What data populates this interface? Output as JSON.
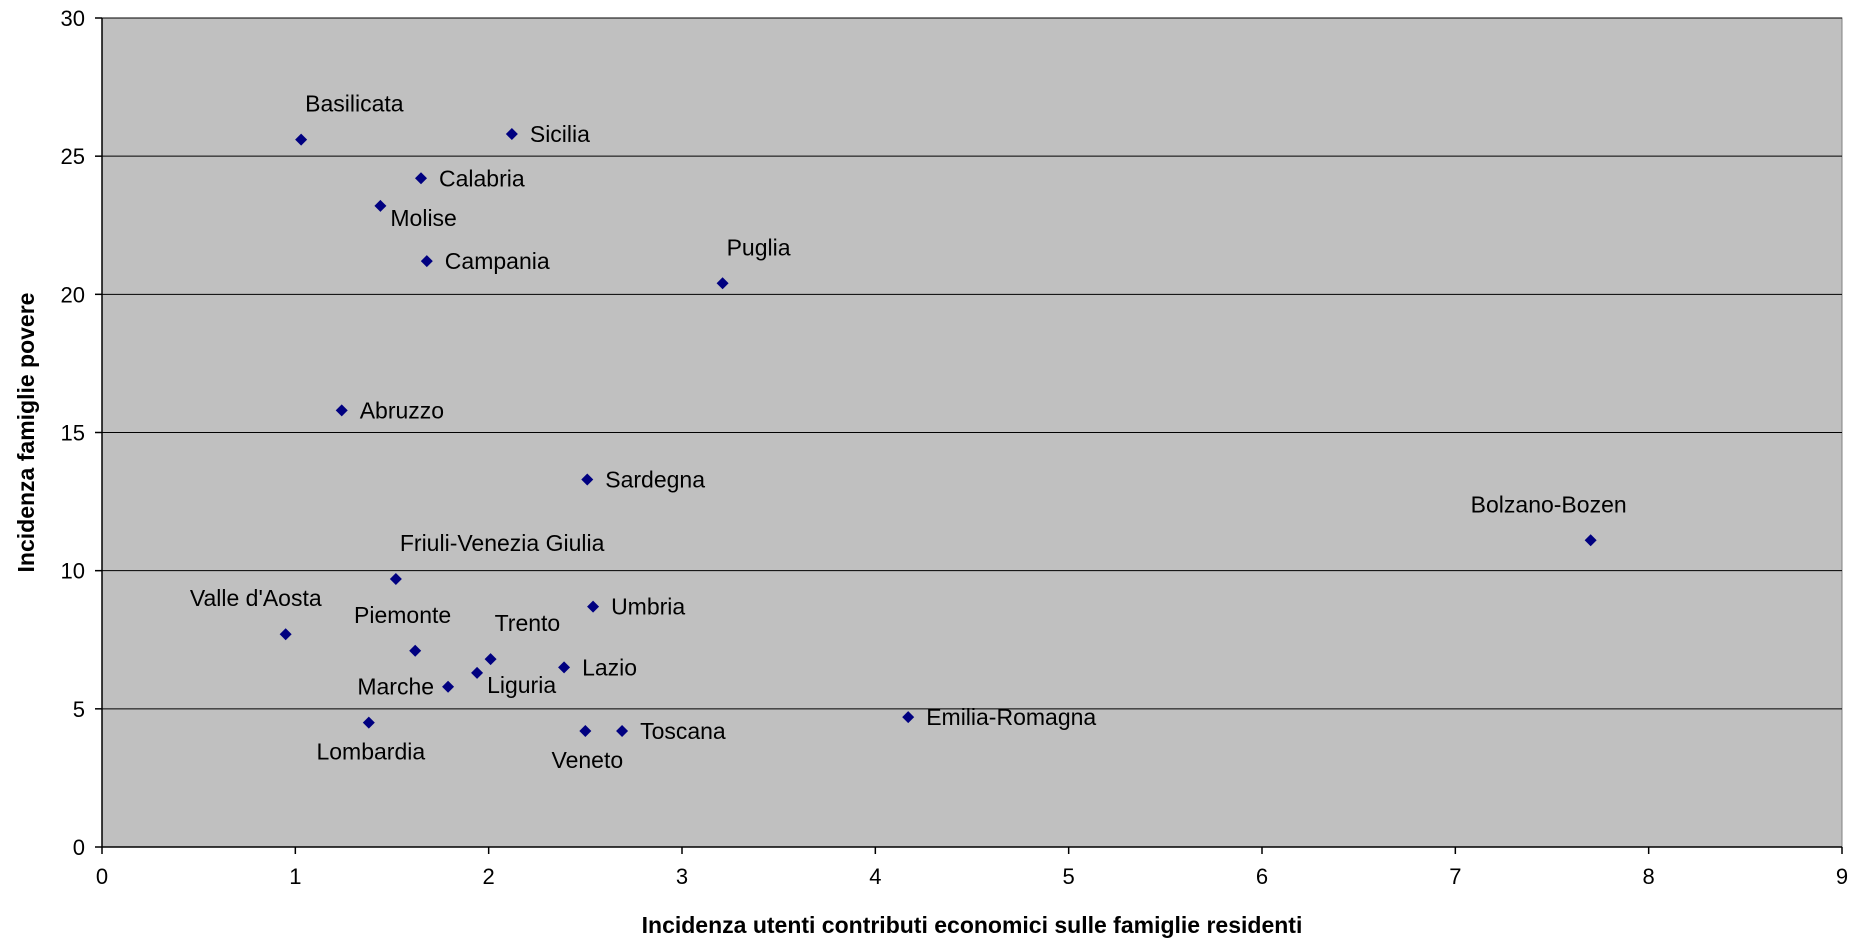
{
  "colors": {
    "plot_bg": "#c0c0c0",
    "marker": "#000080",
    "grid": "#000000"
  },
  "chart_data": {
    "type": "scatter",
    "title": "",
    "xlabel": "Incidenza utenti contributi economici sulle famiglie residenti",
    "ylabel": "Incidenza famiglie povere",
    "xlim": [
      0,
      9
    ],
    "ylim": [
      0,
      30
    ],
    "xticks": [
      0,
      1,
      2,
      3,
      4,
      5,
      6,
      7,
      8,
      9
    ],
    "yticks": [
      0,
      5,
      10,
      15,
      20,
      25,
      30
    ],
    "grid": "horizontal",
    "marker": "diamond",
    "points": [
      {
        "label": "Basilicata",
        "x": 1.03,
        "y": 25.6,
        "pos": "above-right"
      },
      {
        "label": "Sicilia",
        "x": 2.12,
        "y": 25.8,
        "pos": "right"
      },
      {
        "label": "Calabria",
        "x": 1.65,
        "y": 24.2,
        "pos": "right"
      },
      {
        "label": "Molise",
        "x": 1.44,
        "y": 23.2,
        "pos": "below-right"
      },
      {
        "label": "Campania",
        "x": 1.68,
        "y": 21.2,
        "pos": "right"
      },
      {
        "label": "Puglia",
        "x": 3.21,
        "y": 20.4,
        "pos": "above-right"
      },
      {
        "label": "Abruzzo",
        "x": 1.24,
        "y": 15.8,
        "pos": "right"
      },
      {
        "label": "Sardegna",
        "x": 2.51,
        "y": 13.3,
        "pos": "right"
      },
      {
        "label": "Bolzano-Bozen",
        "x": 7.7,
        "y": 11.1,
        "pos": "above-left"
      },
      {
        "label": "Friuli-Venezia Giulia",
        "x": 1.52,
        "y": 9.7,
        "pos": "above-right"
      },
      {
        "label": "Umbria",
        "x": 2.54,
        "y": 8.7,
        "pos": "right"
      },
      {
        "label": "Valle d'Aosta",
        "x": 0.95,
        "y": 7.7,
        "pos": "above-left"
      },
      {
        "label": "Piemonte",
        "x": 1.62,
        "y": 7.1,
        "pos": "above-left"
      },
      {
        "label": "Trento",
        "x": 2.01,
        "y": 6.8,
        "pos": "above-right"
      },
      {
        "label": "Lazio",
        "x": 2.39,
        "y": 6.5,
        "pos": "right"
      },
      {
        "label": "Liguria",
        "x": 1.94,
        "y": 6.3,
        "pos": "below-right"
      },
      {
        "label": "Marche",
        "x": 1.79,
        "y": 5.8,
        "pos": "left"
      },
      {
        "label": "Emilia-Romagna",
        "x": 4.17,
        "y": 4.7,
        "pos": "right"
      },
      {
        "label": "Lombardia",
        "x": 1.38,
        "y": 4.5,
        "pos": "below"
      },
      {
        "label": "Toscana",
        "x": 2.69,
        "y": 4.2,
        "pos": "right"
      },
      {
        "label": "Veneto",
        "x": 2.5,
        "y": 4.2,
        "pos": "below"
      }
    ]
  }
}
